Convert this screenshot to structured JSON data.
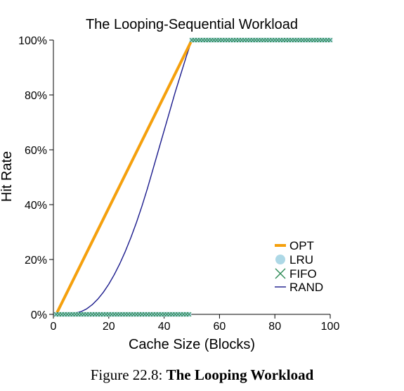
{
  "caption": {
    "label": "Figure 22.8:",
    "title": "The Looping Workload"
  },
  "chart_data": {
    "type": "line",
    "title": "The Looping-Sequential Workload",
    "xlabel": "Cache Size (Blocks)",
    "ylabel": "Hit Rate",
    "xlim": [
      0,
      100
    ],
    "ylim": [
      0,
      100
    ],
    "x_ticks": [
      0,
      20,
      40,
      60,
      80,
      100
    ],
    "y_ticks": [
      0,
      20,
      40,
      60,
      80,
      100
    ],
    "y_tick_labels": [
      "0%",
      "20%",
      "40%",
      "60%",
      "80%",
      "100%"
    ],
    "grid": false,
    "legend_position": "bottom-right",
    "series": [
      {
        "name": "OPT",
        "color": "#f5a00d",
        "marker": "none",
        "x": [
          1,
          50,
          100
        ],
        "y": [
          0,
          100,
          100
        ]
      },
      {
        "name": "LRU",
        "color": "#add8e6",
        "marker": "circle",
        "x": [
          1,
          2,
          3,
          4,
          5,
          6,
          7,
          8,
          9,
          10,
          11,
          12,
          13,
          14,
          15,
          16,
          17,
          18,
          19,
          20,
          21,
          22,
          23,
          24,
          25,
          26,
          27,
          28,
          29,
          30,
          31,
          32,
          33,
          34,
          35,
          36,
          37,
          38,
          39,
          40,
          41,
          42,
          43,
          44,
          45,
          46,
          47,
          48,
          49,
          50,
          51,
          52,
          53,
          54,
          55,
          56,
          57,
          58,
          59,
          60,
          61,
          62,
          63,
          64,
          65,
          66,
          67,
          68,
          69,
          70,
          71,
          72,
          73,
          74,
          75,
          76,
          77,
          78,
          79,
          80,
          81,
          82,
          83,
          84,
          85,
          86,
          87,
          88,
          89,
          90,
          91,
          92,
          93,
          94,
          95,
          96,
          97,
          98,
          99,
          100
        ],
        "y": [
          0,
          0,
          0,
          0,
          0,
          0,
          0,
          0,
          0,
          0,
          0,
          0,
          0,
          0,
          0,
          0,
          0,
          0,
          0,
          0,
          0,
          0,
          0,
          0,
          0,
          0,
          0,
          0,
          0,
          0,
          0,
          0,
          0,
          0,
          0,
          0,
          0,
          0,
          0,
          0,
          0,
          0,
          0,
          0,
          0,
          0,
          0,
          0,
          0,
          100,
          100,
          100,
          100,
          100,
          100,
          100,
          100,
          100,
          100,
          100,
          100,
          100,
          100,
          100,
          100,
          100,
          100,
          100,
          100,
          100,
          100,
          100,
          100,
          100,
          100,
          100,
          100,
          100,
          100,
          100,
          100,
          100,
          100,
          100,
          100,
          100,
          100,
          100,
          100,
          100,
          100,
          100,
          100,
          100,
          100,
          100,
          100,
          100,
          100,
          100
        ]
      },
      {
        "name": "FIFO",
        "color": "#2e8b57",
        "marker": "x",
        "x": [
          1,
          2,
          3,
          4,
          5,
          6,
          7,
          8,
          9,
          10,
          11,
          12,
          13,
          14,
          15,
          16,
          17,
          18,
          19,
          20,
          21,
          22,
          23,
          24,
          25,
          26,
          27,
          28,
          29,
          30,
          31,
          32,
          33,
          34,
          35,
          36,
          37,
          38,
          39,
          40,
          41,
          42,
          43,
          44,
          45,
          46,
          47,
          48,
          49,
          50,
          51,
          52,
          53,
          54,
          55,
          56,
          57,
          58,
          59,
          60,
          61,
          62,
          63,
          64,
          65,
          66,
          67,
          68,
          69,
          70,
          71,
          72,
          73,
          74,
          75,
          76,
          77,
          78,
          79,
          80,
          81,
          82,
          83,
          84,
          85,
          86,
          87,
          88,
          89,
          90,
          91,
          92,
          93,
          94,
          95,
          96,
          97,
          98,
          99,
          100
        ],
        "y": [
          0,
          0,
          0,
          0,
          0,
          0,
          0,
          0,
          0,
          0,
          0,
          0,
          0,
          0,
          0,
          0,
          0,
          0,
          0,
          0,
          0,
          0,
          0,
          0,
          0,
          0,
          0,
          0,
          0,
          0,
          0,
          0,
          0,
          0,
          0,
          0,
          0,
          0,
          0,
          0,
          0,
          0,
          0,
          0,
          0,
          0,
          0,
          0,
          0,
          100,
          100,
          100,
          100,
          100,
          100,
          100,
          100,
          100,
          100,
          100,
          100,
          100,
          100,
          100,
          100,
          100,
          100,
          100,
          100,
          100,
          100,
          100,
          100,
          100,
          100,
          100,
          100,
          100,
          100,
          100,
          100,
          100,
          100,
          100,
          100,
          100,
          100,
          100,
          100,
          100,
          100,
          100,
          100,
          100,
          100,
          100,
          100,
          100,
          100,
          100
        ]
      },
      {
        "name": "RAND",
        "color": "#1a1a8c",
        "marker": "none",
        "x": [
          1,
          5,
          8,
          10,
          12,
          14,
          16,
          18,
          20,
          22,
          24,
          26,
          28,
          30,
          32,
          34,
          36,
          38,
          40,
          42,
          44,
          46,
          48,
          50,
          100
        ],
        "y": [
          0,
          0.2,
          0.5,
          1,
          2,
          3.5,
          5.5,
          8,
          11,
          14.5,
          18.5,
          23,
          28,
          33.5,
          39.5,
          46,
          53,
          60,
          67,
          74,
          81,
          87.5,
          94,
          100,
          100
        ]
      }
    ]
  }
}
